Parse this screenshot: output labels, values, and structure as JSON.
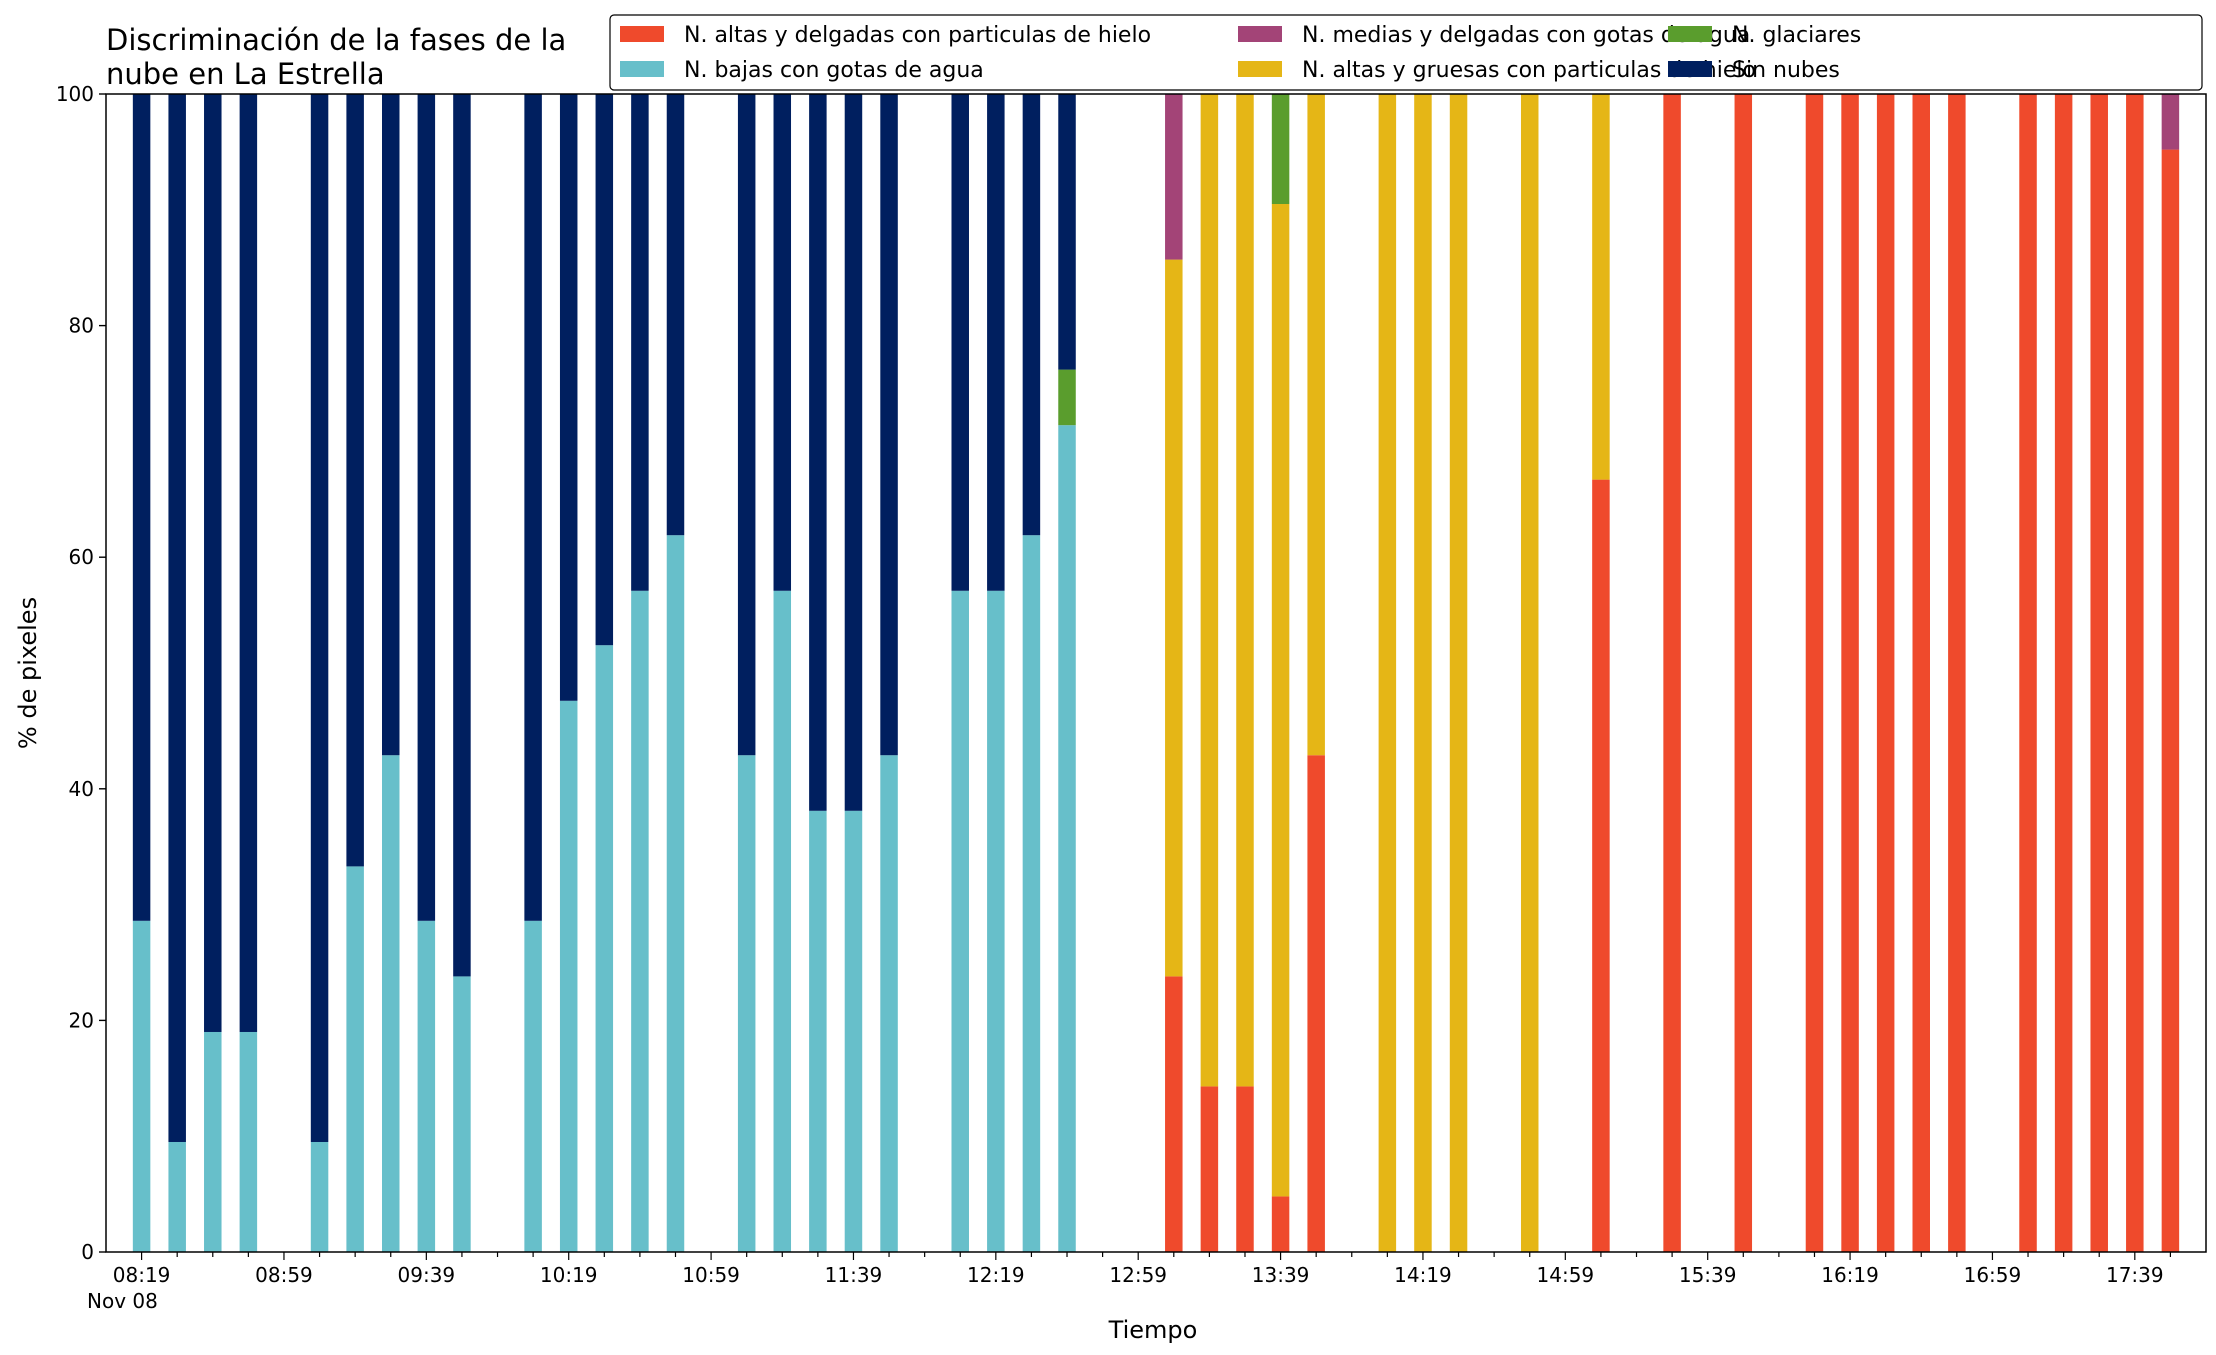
{
  "chart_data": {
    "type": "bar",
    "stacked": true,
    "title_lines": [
      "Discriminación de la fases de la",
      "nube en La Estrella"
    ],
    "xlabel": "Tiempo",
    "ylabel": "% de pixeles",
    "ylim": [
      0,
      100
    ],
    "yticks": [
      0,
      20,
      40,
      60,
      80,
      100
    ],
    "x_date_label": "Nov 08",
    "x_range_minutes": [
      -10,
      580
    ],
    "x_tick_labels": [
      "08:19",
      "08:59",
      "09:39",
      "10:19",
      "10:59",
      "11:39",
      "12:19",
      "12:59",
      "13:39",
      "14:19",
      "14:59",
      "15:39",
      "16:19",
      "16:59",
      "17:39"
    ],
    "x_tick_minutes": [
      0,
      40,
      80,
      120,
      160,
      200,
      240,
      280,
      320,
      360,
      400,
      440,
      480,
      520,
      560
    ],
    "legend_position": "top-right",
    "legend_order": [
      "hielo_delgadas",
      "gotas_bajas",
      "gotas_medias",
      "hielo_gruesas",
      "glaciares",
      "sin_nubes"
    ],
    "series": [
      {
        "key": "hielo_delgadas",
        "name": "N. altas y delgadas con particulas de hielo",
        "color": "#ef4a2c"
      },
      {
        "key": "hielo_gruesas",
        "name": "N. altas y gruesas con particulas de hielo",
        "color": "#e5b616"
      },
      {
        "key": "gotas_bajas",
        "name": "N. bajas con gotas de agua",
        "color": "#67bfca"
      },
      {
        "key": "glaciares",
        "name": "N. glaciares",
        "color": "#5a9d2d"
      },
      {
        "key": "gotas_medias",
        "name": "N. medias y delgadas con gotas de agua",
        "color": "#a34477"
      },
      {
        "key": "sin_nubes",
        "name": "Sin nubes",
        "color": "#001f5f"
      }
    ],
    "stack_order": [
      "hielo_delgadas",
      "hielo_gruesas",
      "gotas_bajas",
      "glaciares",
      "gotas_medias",
      "sin_nubes"
    ],
    "bars": [
      {
        "time": "08:19",
        "values": {
          "gotas_bajas": 28.6,
          "sin_nubes": 71.4
        }
      },
      {
        "time": "08:29",
        "values": {
          "gotas_bajas": 9.5,
          "sin_nubes": 90.5
        }
      },
      {
        "time": "08:39",
        "values": {
          "gotas_bajas": 19.0,
          "sin_nubes": 81.0
        }
      },
      {
        "time": "08:49",
        "values": {
          "gotas_bajas": 19.0,
          "sin_nubes": 81.0
        }
      },
      {
        "time": "09:09",
        "values": {
          "gotas_bajas": 9.5,
          "sin_nubes": 90.5
        }
      },
      {
        "time": "09:19",
        "values": {
          "gotas_bajas": 33.3,
          "sin_nubes": 66.7
        }
      },
      {
        "time": "09:29",
        "values": {
          "gotas_bajas": 42.9,
          "sin_nubes": 57.1
        }
      },
      {
        "time": "09:39",
        "values": {
          "gotas_bajas": 28.6,
          "sin_nubes": 71.4
        }
      },
      {
        "time": "09:49",
        "values": {
          "gotas_bajas": 23.8,
          "sin_nubes": 76.2
        }
      },
      {
        "time": "10:09",
        "values": {
          "gotas_bajas": 28.6,
          "sin_nubes": 71.4
        }
      },
      {
        "time": "10:19",
        "values": {
          "gotas_bajas": 47.6,
          "sin_nubes": 52.4
        }
      },
      {
        "time": "10:29",
        "values": {
          "gotas_bajas": 52.4,
          "sin_nubes": 47.6
        }
      },
      {
        "time": "10:39",
        "values": {
          "gotas_bajas": 57.1,
          "sin_nubes": 42.9
        }
      },
      {
        "time": "10:49",
        "values": {
          "gotas_bajas": 61.9,
          "sin_nubes": 38.1
        }
      },
      {
        "time": "11:09",
        "values": {
          "gotas_bajas": 42.9,
          "sin_nubes": 57.1
        }
      },
      {
        "time": "11:19",
        "values": {
          "gotas_bajas": 57.1,
          "sin_nubes": 42.9
        }
      },
      {
        "time": "11:29",
        "values": {
          "gotas_bajas": 38.1,
          "sin_nubes": 61.9
        }
      },
      {
        "time": "11:39",
        "values": {
          "gotas_bajas": 38.1,
          "sin_nubes": 61.9
        }
      },
      {
        "time": "11:49",
        "values": {
          "gotas_bajas": 42.9,
          "sin_nubes": 57.1
        }
      },
      {
        "time": "12:09",
        "values": {
          "gotas_bajas": 57.1,
          "sin_nubes": 42.9
        }
      },
      {
        "time": "12:19",
        "values": {
          "gotas_bajas": 57.1,
          "sin_nubes": 42.9
        }
      },
      {
        "time": "12:29",
        "values": {
          "gotas_bajas": 61.9,
          "sin_nubes": 38.1
        }
      },
      {
        "time": "12:39",
        "values": {
          "gotas_bajas": 71.4,
          "glaciares": 4.8,
          "sin_nubes": 23.8
        }
      },
      {
        "time": "13:09",
        "values": {
          "hielo_delgadas": 23.8,
          "hielo_gruesas": 61.9,
          "gotas_medias": 14.3
        }
      },
      {
        "time": "13:19",
        "values": {
          "hielo_delgadas": 14.3,
          "hielo_gruesas": 85.7
        }
      },
      {
        "time": "13:29",
        "values": {
          "hielo_delgadas": 14.3,
          "hielo_gruesas": 85.7
        }
      },
      {
        "time": "13:39",
        "values": {
          "hielo_delgadas": 4.8,
          "hielo_gruesas": 85.7,
          "glaciares": 9.5
        }
      },
      {
        "time": "13:49",
        "values": {
          "hielo_delgadas": 42.9,
          "hielo_gruesas": 57.1
        }
      },
      {
        "time": "14:09",
        "values": {
          "hielo_gruesas": 100
        }
      },
      {
        "time": "14:19",
        "values": {
          "hielo_gruesas": 100
        }
      },
      {
        "time": "14:29",
        "values": {
          "hielo_gruesas": 100
        }
      },
      {
        "time": "14:49",
        "values": {
          "hielo_gruesas": 100
        }
      },
      {
        "time": "15:09",
        "values": {
          "hielo_delgadas": 66.7,
          "hielo_gruesas": 33.3
        }
      },
      {
        "time": "15:29",
        "values": {
          "hielo_delgadas": 100
        }
      },
      {
        "time": "15:49",
        "values": {
          "hielo_delgadas": 100
        }
      },
      {
        "time": "16:09",
        "values": {
          "hielo_delgadas": 100
        }
      },
      {
        "time": "16:19",
        "values": {
          "hielo_delgadas": 100
        }
      },
      {
        "time": "16:29",
        "values": {
          "hielo_delgadas": 100
        }
      },
      {
        "time": "16:39",
        "values": {
          "hielo_delgadas": 100
        }
      },
      {
        "time": "16:49",
        "values": {
          "hielo_delgadas": 100
        }
      },
      {
        "time": "17:09",
        "values": {
          "hielo_delgadas": 100
        }
      },
      {
        "time": "17:19",
        "values": {
          "hielo_delgadas": 100
        }
      },
      {
        "time": "17:29",
        "values": {
          "hielo_delgadas": 100
        }
      },
      {
        "time": "17:39",
        "values": {
          "hielo_delgadas": 100
        }
      },
      {
        "time": "17:49",
        "values": {
          "hielo_delgadas": 95.2,
          "gotas_medias": 4.8
        }
      }
    ]
  }
}
